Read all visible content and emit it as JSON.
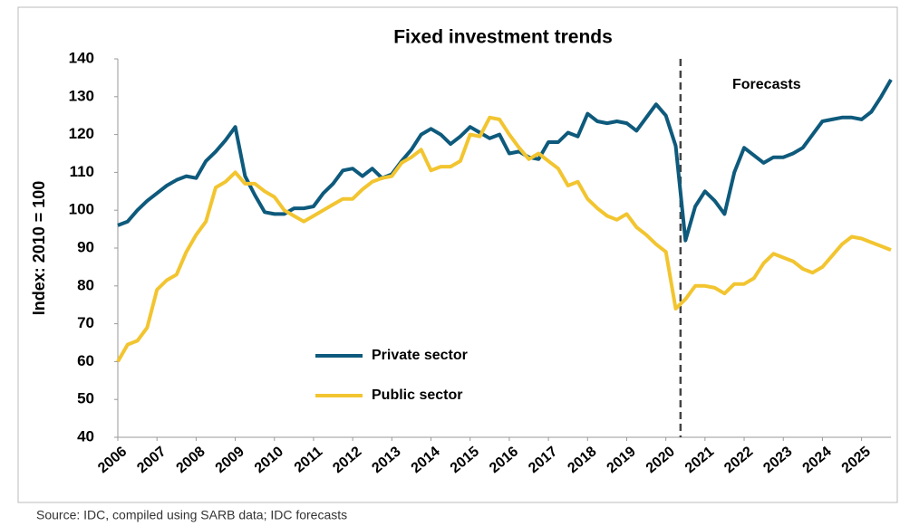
{
  "chart_data": {
    "type": "line",
    "title": "Fixed investment trends",
    "y_label": "Index: 2010 = 100",
    "annotation": "Forecasts",
    "forecast_start": 2020.375,
    "source": "Source: IDC, compiled using SARB data; IDC forecasts",
    "x": [
      2006,
      2006.25,
      2006.5,
      2006.75,
      2007,
      2007.25,
      2007.5,
      2007.75,
      2008,
      2008.25,
      2008.5,
      2008.75,
      2009,
      2009.25,
      2009.5,
      2009.75,
      2010,
      2010.25,
      2010.5,
      2010.75,
      2011,
      2011.25,
      2011.5,
      2011.75,
      2012,
      2012.25,
      2012.5,
      2012.75,
      2013,
      2013.25,
      2013.5,
      2013.75,
      2014,
      2014.25,
      2014.5,
      2014.75,
      2015,
      2015.25,
      2015.5,
      2015.75,
      2016,
      2016.25,
      2016.5,
      2016.75,
      2017,
      2017.25,
      2017.5,
      2017.75,
      2018,
      2018.25,
      2018.5,
      2018.75,
      2019,
      2019.25,
      2019.5,
      2019.75,
      2020,
      2020.25,
      2020.5,
      2020.75,
      2021,
      2021.25,
      2021.5,
      2021.75,
      2022,
      2022.25,
      2022.5,
      2022.75,
      2023,
      2023.25,
      2023.5,
      2023.75,
      2024,
      2024.25,
      2024.5,
      2024.75,
      2025,
      2025.25,
      2025.5,
      2025.75
    ],
    "series": [
      {
        "name": "Private sector",
        "color": "#0e5a7c",
        "values": [
          96,
          97,
          100,
          102.5,
          104.5,
          106.5,
          108,
          109,
          108.5,
          113,
          115.5,
          118.5,
          122,
          109,
          104,
          99.5,
          99,
          99,
          100.5,
          100.5,
          101,
          104.5,
          107,
          110.5,
          111,
          109,
          111,
          108.5,
          109.5,
          113,
          116,
          120,
          121.5,
          120,
          117.5,
          119.5,
          122,
          120.5,
          119,
          120,
          115,
          115.5,
          114,
          113.5,
          118,
          118,
          120.5,
          119.5,
          125.5,
          123.5,
          123,
          123.5,
          123,
          121,
          124.5,
          128,
          125,
          117,
          92,
          101,
          105,
          102.5,
          99,
          110,
          116.5,
          114.5,
          112.5,
          114,
          114,
          115,
          116.5,
          120,
          123.5,
          124,
          124.5,
          124.5,
          124,
          126,
          130,
          134.5
        ]
      },
      {
        "name": "Public sector",
        "color": "#f2c530",
        "values": [
          60,
          64.5,
          65.5,
          69,
          79,
          81.5,
          83,
          89,
          93.5,
          97,
          106,
          107.5,
          110,
          107,
          107,
          105,
          103.5,
          100,
          98.5,
          97,
          98.5,
          100,
          101.5,
          103,
          103,
          105.5,
          107.5,
          108.5,
          109,
          112.5,
          114,
          116,
          110.5,
          111.5,
          111.5,
          113,
          120,
          119.5,
          124.5,
          124,
          120,
          116.5,
          113.5,
          115,
          113,
          111,
          106.5,
          107.5,
          103,
          100.5,
          98.5,
          97.5,
          99,
          95.5,
          93.5,
          91,
          89,
          74,
          76.5,
          80,
          80,
          79.5,
          78,
          80.5,
          80.5,
          82,
          86,
          88.5,
          87.5,
          86.5,
          84.5,
          83.5,
          85,
          88,
          91,
          93,
          92.5,
          91.5,
          90.5,
          89.5
        ]
      }
    ],
    "xlim": [
      2006,
      2025.75
    ],
    "xticks": [
      2006,
      2007,
      2008,
      2009,
      2010,
      2011,
      2012,
      2013,
      2014,
      2015,
      2016,
      2017,
      2018,
      2019,
      2020,
      2021,
      2022,
      2023,
      2024,
      2025
    ],
    "ylim": [
      40,
      140
    ],
    "yticks": [
      40,
      50,
      60,
      70,
      80,
      90,
      100,
      110,
      120,
      130,
      140
    ]
  }
}
